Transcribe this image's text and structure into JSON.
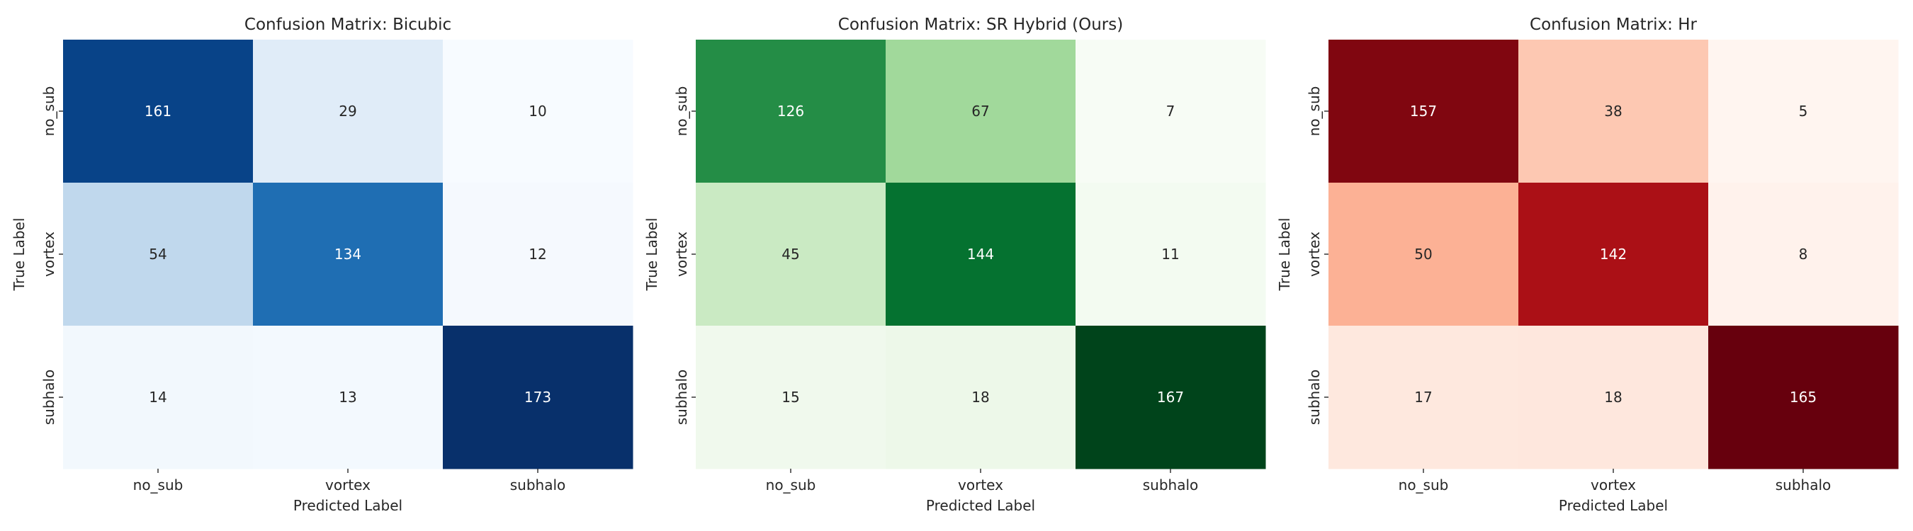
{
  "figure": {
    "background": "#ffffff",
    "text_color": "#262626"
  },
  "chart_data": [
    {
      "type": "heatmap",
      "title": "Confusion Matrix: Bicubic",
      "xlabel": "Predicted Label",
      "ylabel": "True Label",
      "x_categories": [
        "no_sub",
        "vortex",
        "subhalo"
      ],
      "y_categories": [
        "no_sub",
        "vortex",
        "subhalo"
      ],
      "values": [
        [
          161,
          29,
          10
        ],
        [
          54,
          134,
          12
        ],
        [
          14,
          13,
          173
        ]
      ],
      "colormap": "Blues",
      "colorbar": false,
      "grid": false,
      "palette": [
        "#f7fbff",
        "#deebf7",
        "#c6dbef",
        "#9ecae1",
        "#6baed6",
        "#4292c6",
        "#2171b5",
        "#08519c",
        "#08306b"
      ]
    },
    {
      "type": "heatmap",
      "title": "Confusion Matrix: SR Hybrid (Ours)",
      "xlabel": "Predicted Label",
      "ylabel": "True Label",
      "x_categories": [
        "no_sub",
        "vortex",
        "subhalo"
      ],
      "y_categories": [
        "no_sub",
        "vortex",
        "subhalo"
      ],
      "values": [
        [
          126,
          67,
          7
        ],
        [
          45,
          144,
          11
        ],
        [
          15,
          18,
          167
        ]
      ],
      "colormap": "Greens",
      "colorbar": false,
      "grid": false,
      "palette": [
        "#f7fcf5",
        "#e5f5e0",
        "#c7e9c0",
        "#a1d99b",
        "#74c476",
        "#41ab5d",
        "#238b45",
        "#006d2c",
        "#00441b"
      ]
    },
    {
      "type": "heatmap",
      "title": "Confusion Matrix: Hr",
      "xlabel": "Predicted Label",
      "ylabel": "True Label",
      "x_categories": [
        "no_sub",
        "vortex",
        "subhalo"
      ],
      "y_categories": [
        "no_sub",
        "vortex",
        "subhalo"
      ],
      "values": [
        [
          157,
          38,
          5
        ],
        [
          50,
          142,
          8
        ],
        [
          17,
          18,
          165
        ]
      ],
      "colormap": "Reds",
      "colorbar": false,
      "grid": false,
      "palette": [
        "#fff5f0",
        "#fee0d2",
        "#fcbba1",
        "#fc9272",
        "#fb6a4a",
        "#ef3b2c",
        "#cb181d",
        "#a50f15",
        "#67000d"
      ]
    }
  ]
}
